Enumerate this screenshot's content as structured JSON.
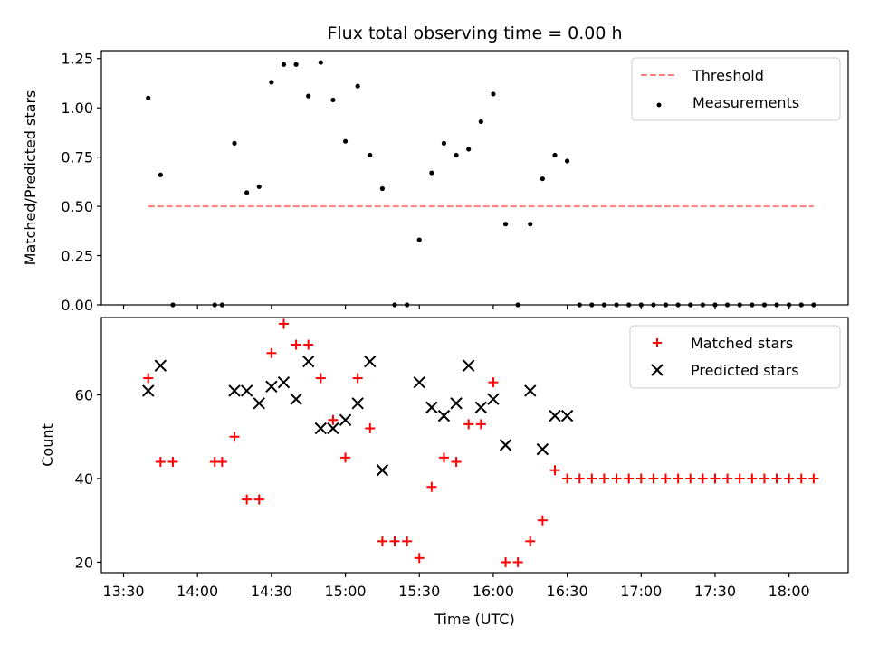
{
  "chart_data": [
    {
      "type": "scatter",
      "title": "Flux total observing time = 0.00 h",
      "xlabel": "",
      "ylabel": "Matched/Predicted stars",
      "xlim": [
        "13:30",
        "18:30"
      ],
      "ylim": [
        0,
        1.29
      ],
      "yticks": [
        "0.00",
        "0.25",
        "0.50",
        "0.75",
        "1.00",
        "1.25"
      ],
      "legend": {
        "location": "upper right",
        "threshold_label": "Threshold",
        "measurements_label": "Measurements"
      },
      "threshold": {
        "value": 0.5,
        "x_start": "13:40",
        "x_end": "18:10",
        "color": "#ff7f7f"
      },
      "series": [
        {
          "name": "Measurements",
          "color": "#000000",
          "x": [
            "13:40",
            "13:45",
            "13:50",
            "14:07",
            "14:10",
            "14:15",
            "14:20",
            "14:25",
            "14:30",
            "14:35",
            "14:40",
            "14:45",
            "14:50",
            "14:55",
            "15:00",
            "15:05",
            "15:10",
            "15:15",
            "15:20",
            "15:25",
            "15:30",
            "15:35",
            "15:40",
            "15:45",
            "15:50",
            "15:55",
            "16:00",
            "16:05",
            "16:10",
            "16:15",
            "16:20",
            "16:25",
            "16:30",
            "16:35",
            "16:40",
            "16:45",
            "16:50",
            "16:55",
            "17:00",
            "17:05",
            "17:10",
            "17:15",
            "17:20",
            "17:25",
            "17:30",
            "17:35",
            "17:40",
            "17:45",
            "17:50",
            "17:55",
            "18:00",
            "18:05",
            "18:10"
          ],
          "y": [
            1.05,
            0.66,
            0,
            0,
            0,
            0.82,
            0.57,
            0.6,
            1.13,
            1.22,
            1.22,
            1.06,
            1.23,
            1.04,
            0.83,
            1.11,
            0.76,
            0.59,
            0,
            0,
            0.33,
            0.67,
            0.82,
            0.76,
            0.79,
            0.93,
            1.07,
            0.41,
            0,
            0.41,
            0.64,
            0.76,
            0.73,
            0,
            0,
            0,
            0,
            0,
            0,
            0,
            0,
            0,
            0,
            0,
            0,
            0,
            0,
            0,
            0,
            0,
            0,
            0,
            0
          ]
        }
      ]
    },
    {
      "type": "scatter",
      "title": "",
      "xlabel": "Time (UTC)",
      "ylabel": "Count",
      "xlim": [
        "13:30",
        "18:30"
      ],
      "ylim": [
        17.5,
        78.5
      ],
      "yticks": [
        "20",
        "40",
        "60"
      ],
      "xticks": [
        "13:30",
        "14:00",
        "14:30",
        "15:00",
        "15:30",
        "16:00",
        "16:30",
        "17:00",
        "17:30",
        "18:00"
      ],
      "legend": {
        "location": "upper right"
      },
      "series": [
        {
          "name": "Matched stars",
          "marker": "+",
          "color": "#ff0000",
          "x": [
            "13:40",
            "13:45",
            "13:50",
            "14:07",
            "14:10",
            "14:15",
            "14:20",
            "14:25",
            "14:30",
            "14:35",
            "14:40",
            "14:45",
            "14:50",
            "14:55",
            "15:00",
            "15:05",
            "15:10",
            "15:15",
            "15:20",
            "15:25",
            "15:30",
            "15:35",
            "15:40",
            "15:45",
            "15:50",
            "15:55",
            "16:00",
            "16:05",
            "16:10",
            "16:15",
            "16:20",
            "16:25",
            "16:30",
            "16:35",
            "16:40",
            "16:45",
            "16:50",
            "16:55",
            "17:00",
            "17:05",
            "17:10",
            "17:15",
            "17:20",
            "17:25",
            "17:30",
            "17:35",
            "17:40",
            "17:45",
            "17:50",
            "17:55",
            "18:00",
            "18:05",
            "18:10"
          ],
          "y": [
            64,
            44,
            44,
            44,
            44,
            50,
            35,
            35,
            70,
            77,
            72,
            72,
            64,
            54,
            45,
            64,
            52,
            25,
            25,
            25,
            21,
            38,
            45,
            44,
            53,
            53,
            63,
            20,
            20,
            25,
            30,
            42,
            40,
            40,
            40,
            40,
            40,
            40,
            40,
            40,
            40,
            40,
            40,
            40,
            40,
            40,
            40,
            40,
            40,
            40,
            40,
            40,
            40
          ]
        },
        {
          "name": "Predicted stars",
          "marker": "x",
          "color": "#000000",
          "x": [
            "13:40",
            "13:45",
            "14:15",
            "14:20",
            "14:25",
            "14:30",
            "14:35",
            "14:40",
            "14:45",
            "14:50",
            "14:55",
            "15:00",
            "15:05",
            "15:10",
            "15:15",
            "15:30",
            "15:35",
            "15:40",
            "15:45",
            "15:50",
            "15:55",
            "16:00",
            "16:05",
            "16:15",
            "16:20",
            "16:25",
            "16:30"
          ],
          "y": [
            61,
            67,
            61,
            61,
            58,
            62,
            63,
            59,
            68,
            52,
            52,
            54,
            58,
            68,
            42,
            63,
            57,
            55,
            58,
            67,
            57,
            59,
            48,
            61,
            47,
            55,
            55
          ]
        }
      ]
    }
  ]
}
